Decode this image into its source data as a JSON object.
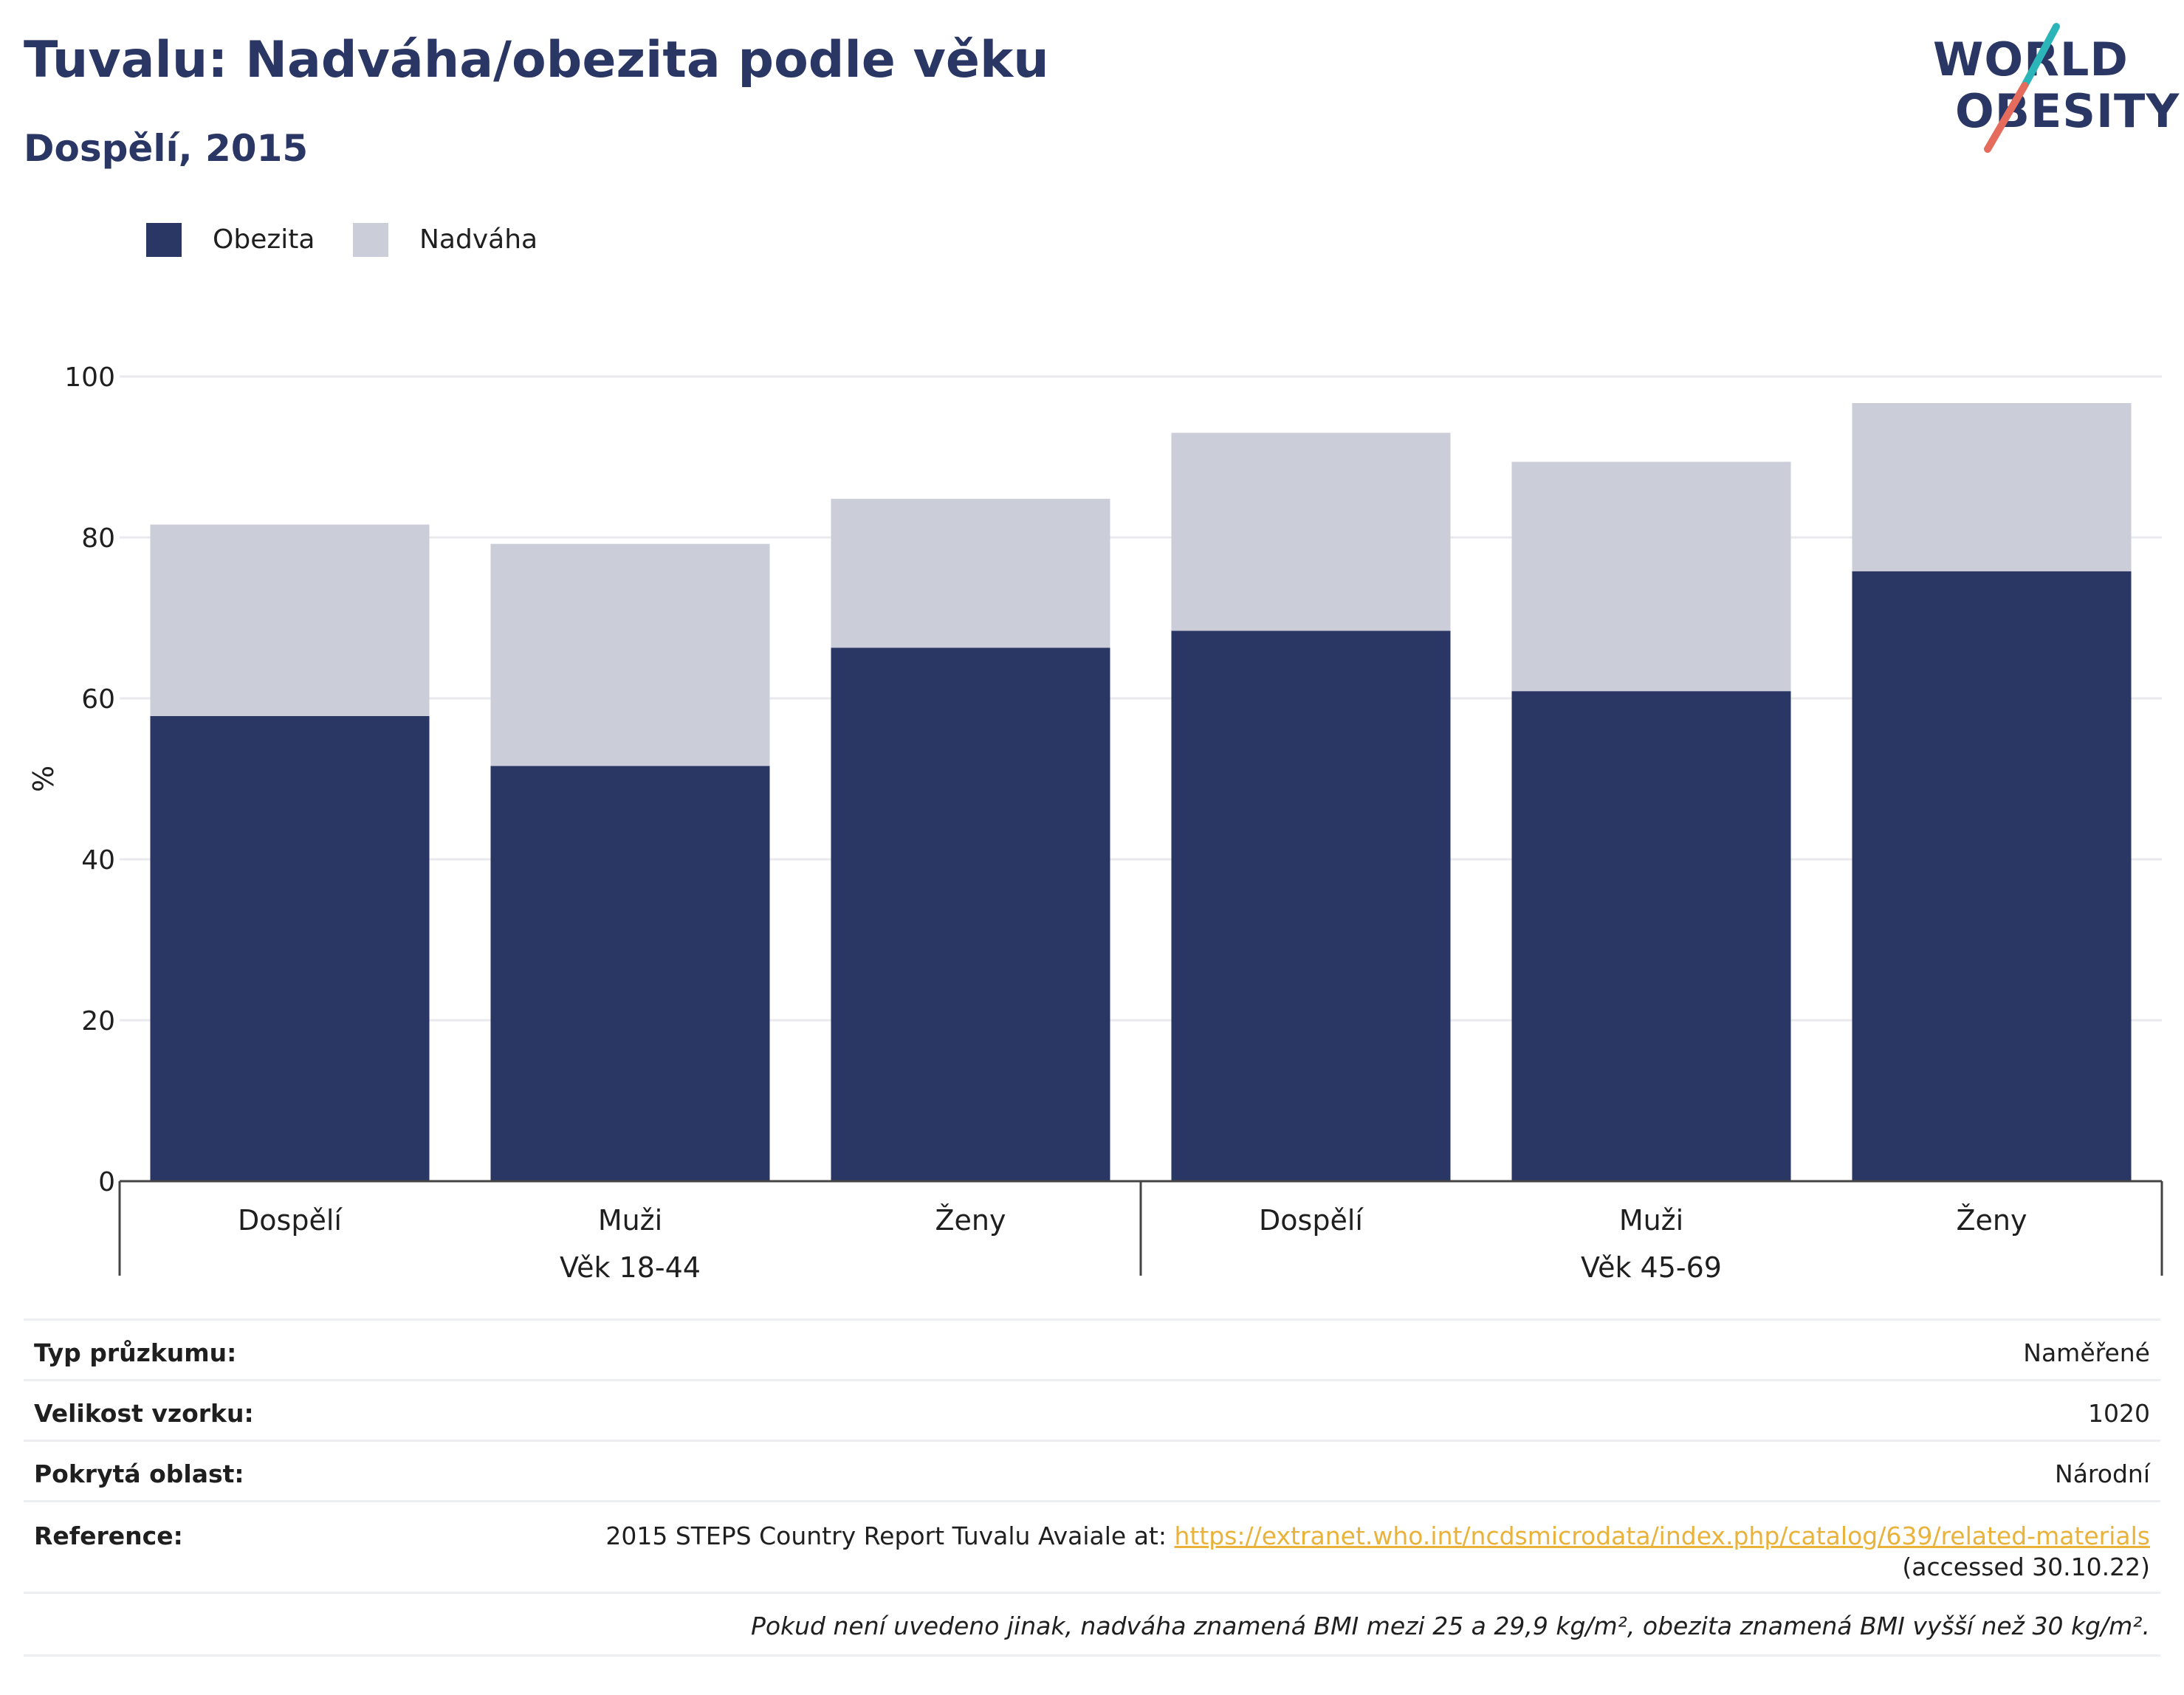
{
  "header": {
    "title": "Tuvalu: Nadváha/obezita podle věku",
    "subtitle": "Dospělí, 2015"
  },
  "logo": {
    "line1": "WORLD",
    "line2": "OBESITY",
    "colors": {
      "text": "#2a3664",
      "slash_top": "#2bb5b8",
      "slash_bottom": "#e56b5d"
    }
  },
  "legend": [
    {
      "label": "Obezita",
      "color": "#2a3664"
    },
    {
      "label": "Nadváha",
      "color": "#cbcdd8"
    }
  ],
  "chart_data": {
    "type": "bar",
    "stacked": true,
    "ylabel": "%",
    "ylim": [
      0,
      100
    ],
    "yticks": [
      0,
      20,
      40,
      60,
      80,
      100
    ],
    "grid": true,
    "legend_position": "top-left",
    "categories": [
      "Dospělí",
      "Muži",
      "Ženy",
      "Dospělí",
      "Muži",
      "Ženy"
    ],
    "groups": [
      {
        "label": "Věk 18-44",
        "categories": [
          0,
          1,
          2
        ]
      },
      {
        "label": "Věk 45-69",
        "categories": [
          3,
          4,
          5
        ]
      }
    ],
    "series": [
      {
        "name": "Obezita",
        "color": "#2a3664",
        "values": [
          57.8,
          51.6,
          66.3,
          68.4,
          60.9,
          75.8
        ]
      },
      {
        "name": "Nadváha",
        "color": "#cbcdd8",
        "values": [
          23.8,
          27.6,
          18.5,
          24.6,
          28.5,
          20.9
        ]
      }
    ]
  },
  "info": {
    "survey_type": {
      "label": "Typ průzkumu:",
      "value": "Naměřené"
    },
    "sample_size": {
      "label": "Velikost vzorku:",
      "value": "1020"
    },
    "coverage": {
      "label": "Pokrytá oblast:",
      "value": "Národní"
    },
    "reference": {
      "label": "Reference:",
      "text": "2015 STEPS Country Report Tuvalu Avaiale at: ",
      "link": "https://extranet.who.int/ncdsmicrodata/index.php/catalog/639/related-materials",
      "accessed": "(accessed 30.10.22)"
    },
    "note": "Pokud není uvedeno jinak, nadváha znamená BMI mezi 25 a 29,9 kg/m², obezita znamená BMI vyšší než 30 kg/m²."
  }
}
